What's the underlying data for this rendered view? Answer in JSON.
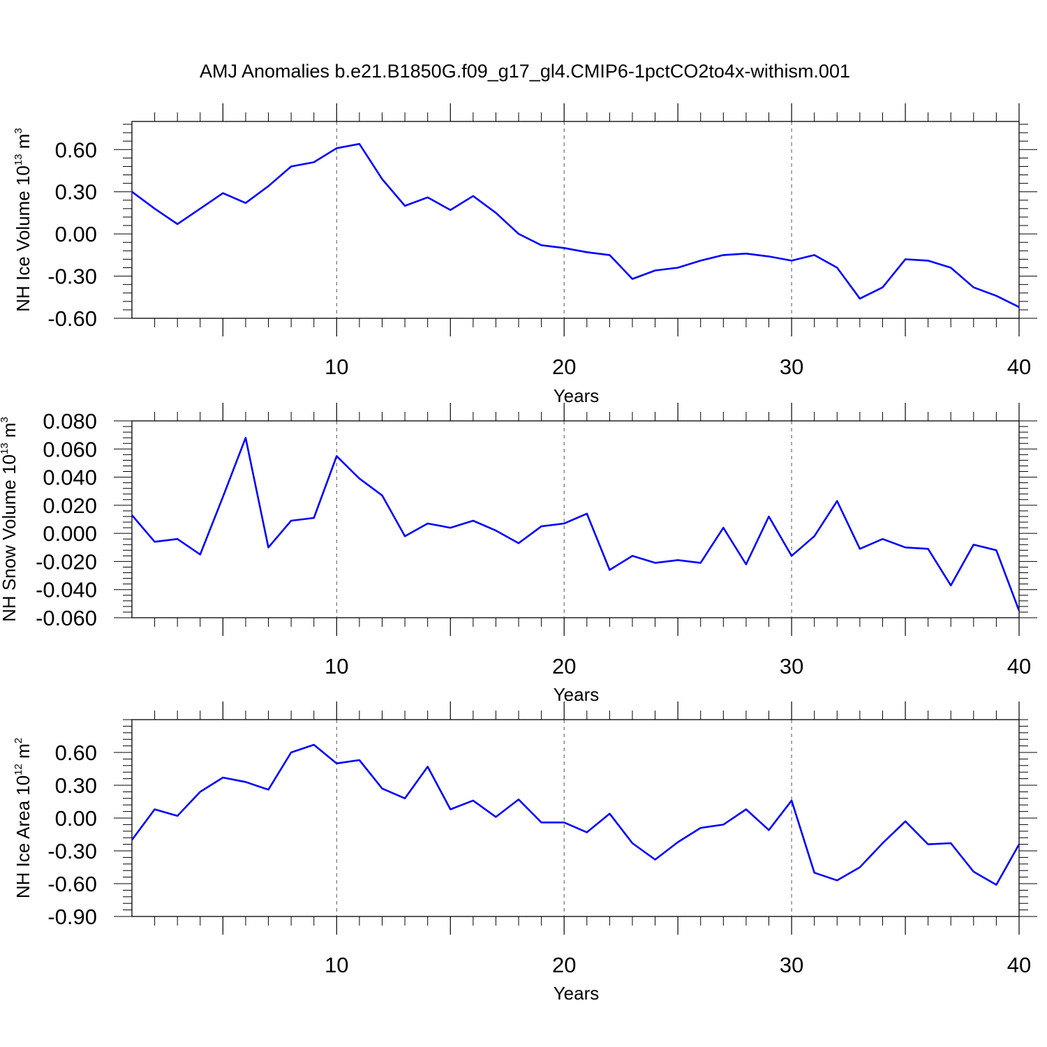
{
  "title": "AMJ Anomalies b.e21.B1850G.f09_g17_gl4.CMIP6-1pctCO2to4x-withism.001",
  "colors": {
    "line": "#0000ff",
    "axis": "#000000",
    "grid": "#555555"
  },
  "chart_data": [
    {
      "type": "line",
      "xlabel": "Years",
      "ylabel": {
        "prefix": "NH Ice Volume 10",
        "exp": "13",
        "unit": " m",
        "unit_exp": "3"
      },
      "xlim": [
        1,
        40
      ],
      "ylim": [
        -0.6,
        0.8
      ],
      "xticks": [
        "10",
        "20",
        "30",
        "40"
      ],
      "yticks": [
        "0.60",
        "0.30",
        "0.00",
        "-0.30",
        "-0.60"
      ],
      "grid": "vertical dashed at 10, 20, 30",
      "x": [
        1,
        2,
        3,
        4,
        5,
        6,
        7,
        8,
        9,
        10,
        11,
        12,
        13,
        14,
        15,
        16,
        17,
        18,
        19,
        20,
        21,
        22,
        23,
        24,
        25,
        26,
        27,
        28,
        29,
        30,
        31,
        32,
        33,
        34,
        35,
        36,
        37,
        38,
        39,
        40
      ],
      "values": [
        0.3,
        0.18,
        0.07,
        0.18,
        0.29,
        0.22,
        0.34,
        0.48,
        0.51,
        0.61,
        0.64,
        0.39,
        0.2,
        0.26,
        0.17,
        0.27,
        0.15,
        0.0,
        -0.08,
        -0.1,
        -0.13,
        -0.15,
        -0.32,
        -0.26,
        -0.24,
        -0.19,
        -0.15,
        -0.14,
        -0.16,
        -0.19,
        -0.15,
        -0.24,
        -0.46,
        -0.38,
        -0.18,
        -0.19,
        -0.24,
        -0.38,
        -0.44,
        -0.52
      ]
    },
    {
      "type": "line",
      "xlabel": "Years",
      "ylabel": {
        "prefix": "NH Snow Volume 10",
        "exp": "13",
        "unit": " m",
        "unit_exp": "3"
      },
      "xlim": [
        1,
        40
      ],
      "ylim": [
        -0.06,
        0.08
      ],
      "xticks": [
        "10",
        "20",
        "30",
        "40"
      ],
      "yticks": [
        "0.080",
        "0.060",
        "0.040",
        "0.020",
        "0.000",
        "-0.020",
        "-0.040",
        "-0.060"
      ],
      "grid": "vertical dashed at 10, 20, 30",
      "x": [
        1,
        2,
        3,
        4,
        5,
        6,
        7,
        8,
        9,
        10,
        11,
        12,
        13,
        14,
        15,
        16,
        17,
        18,
        19,
        20,
        21,
        22,
        23,
        24,
        25,
        26,
        27,
        28,
        29,
        30,
        31,
        32,
        33,
        34,
        35,
        36,
        37,
        38,
        39,
        40
      ],
      "values": [
        0.013,
        -0.006,
        -0.004,
        -0.015,
        0.026,
        0.068,
        -0.01,
        0.009,
        0.011,
        0.055,
        0.039,
        0.027,
        -0.002,
        0.007,
        0.004,
        0.009,
        0.002,
        -0.007,
        0.005,
        0.007,
        0.014,
        -0.026,
        -0.016,
        -0.021,
        -0.019,
        -0.021,
        0.004,
        -0.022,
        0.012,
        -0.016,
        -0.002,
        0.023,
        -0.011,
        -0.004,
        -0.01,
        -0.011,
        -0.037,
        -0.008,
        -0.012,
        -0.055
      ]
    },
    {
      "type": "line",
      "xlabel": "Years",
      "ylabel": {
        "prefix": "NH Ice Area 10",
        "exp": "12",
        "unit": " m",
        "unit_exp": "2"
      },
      "xlim": [
        1,
        40
      ],
      "ylim": [
        -0.9,
        0.9
      ],
      "xticks": [
        "10",
        "20",
        "30",
        "40"
      ],
      "yticks": [
        "0.60",
        "0.30",
        "0.00",
        "-0.30",
        "-0.60",
        "-0.90"
      ],
      "grid": "vertical dashed at 10, 20, 30",
      "x": [
        1,
        2,
        3,
        4,
        5,
        6,
        7,
        8,
        9,
        10,
        11,
        12,
        13,
        14,
        15,
        16,
        17,
        18,
        19,
        20,
        21,
        22,
        23,
        24,
        25,
        26,
        27,
        28,
        29,
        30,
        31,
        32,
        33,
        34,
        35,
        36,
        37,
        38,
        39,
        40
      ],
      "values": [
        -0.2,
        0.08,
        0.02,
        0.24,
        0.37,
        0.33,
        0.26,
        0.6,
        0.67,
        0.5,
        0.53,
        0.27,
        0.18,
        0.47,
        0.08,
        0.16,
        0.01,
        0.17,
        -0.04,
        -0.04,
        -0.13,
        0.04,
        -0.23,
        -0.38,
        -0.22,
        -0.09,
        -0.06,
        0.08,
        -0.11,
        0.16,
        -0.5,
        -0.57,
        -0.45,
        -0.23,
        -0.03,
        -0.24,
        -0.23,
        -0.49,
        -0.61,
        -0.24
      ]
    }
  ]
}
